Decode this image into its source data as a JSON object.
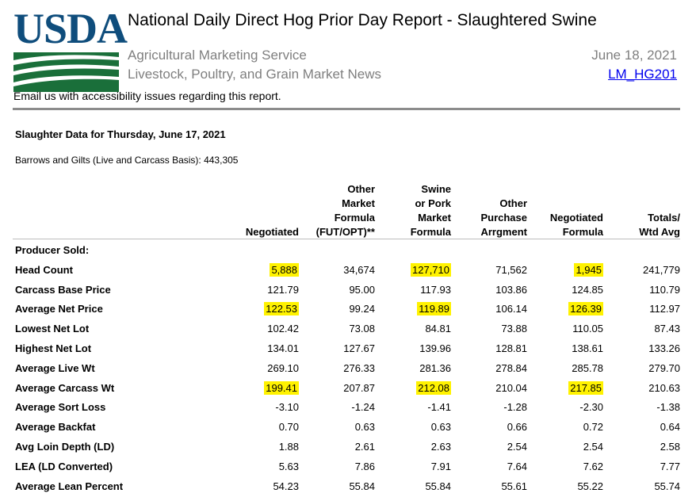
{
  "header": {
    "logo_text": "USDA",
    "title": "National Daily Direct Hog Prior Day Report - Slaughtered Swine",
    "agency": "Agricultural Marketing Service",
    "division": "Livestock, Poultry, and Grain Market News",
    "date": "June 18, 2021",
    "report_code": "LM_HG201",
    "email_note": "Email us with accessibility issues regarding this report."
  },
  "colors": {
    "logo_blue": "#0f4d7c",
    "logo_green": "#1a6f3a",
    "highlight": "#fff200",
    "link": "#0000ee",
    "subtle_text": "#7f7f7f"
  },
  "slaughter": {
    "title": "Slaughter Data for Thursday, June 17, 2021",
    "barrows_gilts": "Barrows and Gilts (Live and Carcass Basis): 443,305"
  },
  "table": {
    "columns": [
      [
        "Negotiated"
      ],
      [
        "Other",
        "Market",
        "Formula",
        "(FUT/OPT)**"
      ],
      [
        "Swine",
        "or Pork",
        "Market",
        "Formula"
      ],
      [
        "Other",
        "Purchase",
        "Arrgment"
      ],
      [
        "Negotiated",
        "Formula"
      ],
      [
        "Totals/",
        "Wtd Avg"
      ]
    ],
    "group_label": "Producer Sold:",
    "rows": [
      {
        "label": "Head Count",
        "values": [
          "5,888",
          "34,674",
          "127,710",
          "71,562",
          "1,945",
          "241,779"
        ],
        "highlight": [
          true,
          false,
          true,
          false,
          true,
          false
        ]
      },
      {
        "label": "Carcass Base Price",
        "values": [
          "121.79",
          "95.00",
          "117.93",
          "103.86",
          "124.85",
          "110.79"
        ],
        "highlight": [
          false,
          false,
          false,
          false,
          false,
          false
        ]
      },
      {
        "label": "Average Net Price",
        "values": [
          "122.53",
          "99.24",
          "119.89",
          "106.14",
          "126.39",
          "112.97"
        ],
        "highlight": [
          true,
          false,
          true,
          false,
          true,
          false
        ]
      },
      {
        "label": "Lowest Net Lot",
        "values": [
          "102.42",
          "73.08",
          "84.81",
          "73.88",
          "110.05",
          "87.43"
        ],
        "highlight": [
          false,
          false,
          false,
          false,
          false,
          false
        ]
      },
      {
        "label": "Highest Net Lot",
        "values": [
          "134.01",
          "127.67",
          "139.96",
          "128.81",
          "138.61",
          "133.26"
        ],
        "highlight": [
          false,
          false,
          false,
          false,
          false,
          false
        ]
      },
      {
        "label": "Average Live Wt",
        "values": [
          "269.10",
          "276.33",
          "281.36",
          "278.84",
          "285.78",
          "279.70"
        ],
        "highlight": [
          false,
          false,
          false,
          false,
          false,
          false
        ]
      },
      {
        "label": "Average Carcass Wt",
        "values": [
          "199.41",
          "207.87",
          "212.08",
          "210.04",
          "217.85",
          "210.63"
        ],
        "highlight": [
          true,
          false,
          true,
          false,
          true,
          false
        ]
      },
      {
        "label": "Average Sort Loss",
        "values": [
          "-3.10",
          "-1.24",
          "-1.41",
          "-1.28",
          "-2.30",
          "-1.38"
        ],
        "highlight": [
          false,
          false,
          false,
          false,
          false,
          false
        ]
      },
      {
        "label": "Average Backfat",
        "values": [
          "0.70",
          "0.63",
          "0.63",
          "0.66",
          "0.72",
          "0.64"
        ],
        "highlight": [
          false,
          false,
          false,
          false,
          false,
          false
        ]
      },
      {
        "label": "Avg Loin Depth (LD)",
        "values": [
          "1.88",
          "2.61",
          "2.63",
          "2.54",
          "2.54",
          "2.58"
        ],
        "highlight": [
          false,
          false,
          false,
          false,
          false,
          false
        ]
      },
      {
        "label": "LEA (LD Converted)",
        "values": [
          "5.63",
          "7.86",
          "7.91",
          "7.64",
          "7.62",
          "7.77"
        ],
        "highlight": [
          false,
          false,
          false,
          false,
          false,
          false
        ]
      },
      {
        "label": "Average Lean Percent",
        "values": [
          "54.23",
          "55.84",
          "55.84",
          "55.61",
          "55.22",
          "55.74"
        ],
        "highlight": [
          false,
          false,
          false,
          false,
          false,
          false
        ]
      }
    ]
  }
}
